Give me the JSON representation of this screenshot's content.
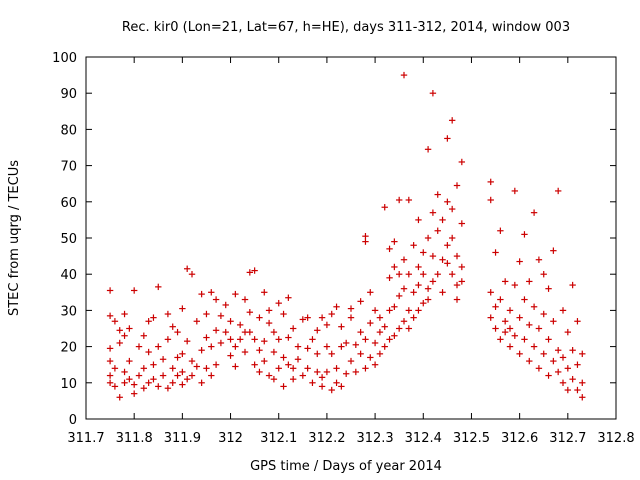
{
  "chart_data": {
    "type": "scatter",
    "title": "Rec. kir0 (Lon=21, Lat=67, h=HE), days 311-312, 2014, window 003",
    "xlabel": "GPS time / Days of year 2014",
    "ylabel": "STEC from uqrg / TECUs",
    "xlim": [
      311.7,
      312.8
    ],
    "ylim": [
      0,
      100
    ],
    "xticks": [
      311.7,
      311.8,
      311.9,
      312,
      312.1,
      312.2,
      312.3,
      312.4,
      312.5,
      312.6,
      312.7,
      312.8
    ],
    "xtick_labels": [
      "311.7",
      "311.8",
      "311.9",
      "312",
      "312.1",
      "312.2",
      "312.3",
      "312.4",
      "312.5",
      "312.6",
      "312.7",
      "312.8"
    ],
    "yticks": [
      0,
      10,
      20,
      30,
      40,
      50,
      60,
      70,
      80,
      90,
      100
    ],
    "ytick_labels": [
      "0",
      "10",
      "20",
      "30",
      "40",
      "50",
      "60",
      "70",
      "80",
      "90",
      "100"
    ],
    "marker": "+",
    "color": "#cc0000",
    "grid": false,
    "points": [
      [
        311.75,
        35.5
      ],
      [
        311.75,
        28.5
      ],
      [
        311.75,
        19.5
      ],
      [
        311.75,
        16
      ],
      [
        311.75,
        12
      ],
      [
        311.75,
        10
      ],
      [
        311.76,
        9
      ],
      [
        311.76,
        14
      ],
      [
        311.76,
        27
      ],
      [
        311.77,
        24.5
      ],
      [
        311.77,
        21
      ],
      [
        311.77,
        6
      ],
      [
        311.78,
        10
      ],
      [
        311.78,
        13
      ],
      [
        311.78,
        23
      ],
      [
        311.78,
        29
      ],
      [
        311.79,
        11
      ],
      [
        311.79,
        16
      ],
      [
        311.79,
        25
      ],
      [
        311.8,
        9.5
      ],
      [
        311.8,
        7
      ],
      [
        311.8,
        35.5
      ],
      [
        311.81,
        12
      ],
      [
        311.81,
        20
      ],
      [
        311.82,
        8.5
      ],
      [
        311.82,
        14
      ],
      [
        311.82,
        23
      ],
      [
        311.83,
        10
      ],
      [
        311.83,
        18.5
      ],
      [
        311.83,
        27
      ],
      [
        311.84,
        11
      ],
      [
        311.84,
        15
      ],
      [
        311.84,
        28
      ],
      [
        311.85,
        36.5
      ],
      [
        311.85,
        9
      ],
      [
        311.85,
        20
      ],
      [
        311.86,
        12
      ],
      [
        311.86,
        16.5
      ],
      [
        311.87,
        8.5
      ],
      [
        311.87,
        22
      ],
      [
        311.87,
        29
      ],
      [
        311.88,
        10
      ],
      [
        311.88,
        14
      ],
      [
        311.88,
        25.5
      ],
      [
        311.89,
        12
      ],
      [
        311.89,
        17
      ],
      [
        311.89,
        24
      ],
      [
        311.9,
        9.5
      ],
      [
        311.9,
        13
      ],
      [
        311.9,
        18
      ],
      [
        311.9,
        30.5
      ],
      [
        311.91,
        41.5
      ],
      [
        311.91,
        11
      ],
      [
        311.91,
        21.5
      ],
      [
        311.92,
        12
      ],
      [
        311.92,
        16
      ],
      [
        311.92,
        40
      ],
      [
        311.93,
        14.5
      ],
      [
        311.93,
        27
      ],
      [
        311.94,
        10
      ],
      [
        311.94,
        19
      ],
      [
        311.94,
        34.5
      ],
      [
        311.95,
        14
      ],
      [
        311.95,
        22.5
      ],
      [
        311.95,
        29
      ],
      [
        311.96,
        12
      ],
      [
        311.96,
        20
      ],
      [
        311.96,
        35
      ],
      [
        311.97,
        15
      ],
      [
        311.97,
        24.5
      ],
      [
        311.97,
        33
      ],
      [
        311.98,
        21
      ],
      [
        311.98,
        28.5
      ],
      [
        311.99,
        24
      ],
      [
        311.99,
        31.5
      ],
      [
        312,
        17.5
      ],
      [
        312,
        22
      ],
      [
        312,
        27
      ],
      [
        312.01,
        34.5
      ],
      [
        312.01,
        20
      ],
      [
        312.01,
        14.5
      ],
      [
        312.02,
        26
      ],
      [
        312.02,
        22
      ],
      [
        312.03,
        33
      ],
      [
        312.03,
        24
      ],
      [
        312.03,
        18.5
      ],
      [
        312.04,
        40.5
      ],
      [
        312.04,
        29.5
      ],
      [
        312.04,
        24
      ],
      [
        312.05,
        41
      ],
      [
        312.05,
        22
      ],
      [
        312.05,
        15
      ],
      [
        312.06,
        13
      ],
      [
        312.06,
        19
      ],
      [
        312.06,
        28
      ],
      [
        312.07,
        35
      ],
      [
        312.07,
        21.5
      ],
      [
        312.07,
        16
      ],
      [
        312.08,
        12
      ],
      [
        312.08,
        26.5
      ],
      [
        312.08,
        30
      ],
      [
        312.09,
        18.5
      ],
      [
        312.09,
        11
      ],
      [
        312.09,
        24
      ],
      [
        312.1,
        14
      ],
      [
        312.1,
        22
      ],
      [
        312.1,
        32
      ],
      [
        312.11,
        9
      ],
      [
        312.11,
        17
      ],
      [
        312.11,
        29
      ],
      [
        312.12,
        15
      ],
      [
        312.12,
        22.5
      ],
      [
        312.12,
        33.5
      ],
      [
        312.13,
        11
      ],
      [
        312.13,
        14
      ],
      [
        312.13,
        25
      ],
      [
        312.14,
        16.5
      ],
      [
        312.14,
        20
      ],
      [
        312.15,
        12
      ],
      [
        312.15,
        27.5
      ],
      [
        312.16,
        14
      ],
      [
        312.16,
        19.5
      ],
      [
        312.16,
        28
      ],
      [
        312.17,
        10
      ],
      [
        312.17,
        22
      ],
      [
        312.18,
        13
      ],
      [
        312.18,
        18
      ],
      [
        312.18,
        24.5
      ],
      [
        312.19,
        9
      ],
      [
        312.19,
        11.5
      ],
      [
        312.19,
        28
      ],
      [
        312.2,
        13
      ],
      [
        312.2,
        20
      ],
      [
        312.2,
        26
      ],
      [
        312.21,
        8
      ],
      [
        312.21,
        18
      ],
      [
        312.21,
        29
      ],
      [
        312.22,
        10
      ],
      [
        312.22,
        14
      ],
      [
        312.22,
        31
      ],
      [
        312.23,
        9
      ],
      [
        312.23,
        20
      ],
      [
        312.23,
        25.5
      ],
      [
        312.24,
        12.5
      ],
      [
        312.24,
        21
      ],
      [
        312.25,
        16
      ],
      [
        312.25,
        28
      ],
      [
        312.25,
        30.5
      ],
      [
        312.26,
        13
      ],
      [
        312.26,
        20.5
      ],
      [
        312.27,
        18
      ],
      [
        312.27,
        24
      ],
      [
        312.27,
        32.5
      ],
      [
        312.28,
        14
      ],
      [
        312.28,
        22
      ],
      [
        312.28,
        50.5
      ],
      [
        312.28,
        49
      ],
      [
        312.29,
        17
      ],
      [
        312.29,
        26.5
      ],
      [
        312.29,
        35
      ],
      [
        312.3,
        15
      ],
      [
        312.3,
        21
      ],
      [
        312.3,
        30
      ],
      [
        312.31,
        18
      ],
      [
        312.31,
        24
      ],
      [
        312.31,
        28
      ],
      [
        312.32,
        20
      ],
      [
        312.32,
        25.5
      ],
      [
        312.32,
        58.5
      ],
      [
        312.33,
        22
      ],
      [
        312.33,
        30
      ],
      [
        312.33,
        39
      ],
      [
        312.33,
        47
      ],
      [
        312.34,
        23
      ],
      [
        312.34,
        31
      ],
      [
        312.34,
        42
      ],
      [
        312.34,
        49
      ],
      [
        312.35,
        25
      ],
      [
        312.35,
        34
      ],
      [
        312.35,
        60.5
      ],
      [
        312.35,
        40
      ],
      [
        312.36,
        95
      ],
      [
        312.36,
        27
      ],
      [
        312.36,
        36
      ],
      [
        312.36,
        44
      ],
      [
        312.37,
        25
      ],
      [
        312.37,
        30
      ],
      [
        312.37,
        60.5
      ],
      [
        312.37,
        40
      ],
      [
        312.38,
        28
      ],
      [
        312.38,
        35
      ],
      [
        312.38,
        48
      ],
      [
        312.39,
        30
      ],
      [
        312.39,
        37
      ],
      [
        312.39,
        42
      ],
      [
        312.39,
        55
      ],
      [
        312.4,
        32
      ],
      [
        312.4,
        40
      ],
      [
        312.4,
        46
      ],
      [
        312.41,
        33
      ],
      [
        312.41,
        50
      ],
      [
        312.41,
        74.5
      ],
      [
        312.41,
        36
      ],
      [
        312.42,
        90
      ],
      [
        312.42,
        38
      ],
      [
        312.42,
        45
      ],
      [
        312.42,
        57
      ],
      [
        312.43,
        40
      ],
      [
        312.43,
        52
      ],
      [
        312.43,
        62
      ],
      [
        312.44,
        35
      ],
      [
        312.44,
        44
      ],
      [
        312.44,
        55
      ],
      [
        312.45,
        43
      ],
      [
        312.45,
        60
      ],
      [
        312.45,
        77.5
      ],
      [
        312.45,
        48
      ],
      [
        312.46,
        82.5
      ],
      [
        312.46,
        40
      ],
      [
        312.46,
        50
      ],
      [
        312.46,
        58
      ],
      [
        312.47,
        37
      ],
      [
        312.47,
        45
      ],
      [
        312.47,
        64.5
      ],
      [
        312.47,
        33
      ],
      [
        312.48,
        42
      ],
      [
        312.48,
        54
      ],
      [
        312.48,
        71
      ],
      [
        312.48,
        38
      ],
      [
        312.54,
        65.5
      ],
      [
        312.54,
        60.5
      ],
      [
        312.54,
        35
      ],
      [
        312.54,
        28
      ],
      [
        312.55,
        25
      ],
      [
        312.55,
        31
      ],
      [
        312.55,
        46
      ],
      [
        312.56,
        22
      ],
      [
        312.56,
        33
      ],
      [
        312.56,
        52
      ],
      [
        312.57,
        24
      ],
      [
        312.57,
        38
      ],
      [
        312.57,
        27
      ],
      [
        312.58,
        20
      ],
      [
        312.58,
        25
      ],
      [
        312.58,
        30
      ],
      [
        312.59,
        23
      ],
      [
        312.59,
        37
      ],
      [
        312.59,
        63
      ],
      [
        312.6,
        18
      ],
      [
        312.6,
        28
      ],
      [
        312.6,
        43.5
      ],
      [
        312.61,
        22
      ],
      [
        312.61,
        33
      ],
      [
        312.61,
        51
      ],
      [
        312.62,
        16
      ],
      [
        312.62,
        26
      ],
      [
        312.62,
        38
      ],
      [
        312.63,
        20
      ],
      [
        312.63,
        31
      ],
      [
        312.63,
        57
      ],
      [
        312.64,
        14
      ],
      [
        312.64,
        25
      ],
      [
        312.64,
        44
      ],
      [
        312.65,
        18
      ],
      [
        312.65,
        29
      ],
      [
        312.65,
        40
      ],
      [
        312.66,
        12
      ],
      [
        312.66,
        22
      ],
      [
        312.66,
        36
      ],
      [
        312.67,
        16
      ],
      [
        312.67,
        27
      ],
      [
        312.67,
        46.5
      ],
      [
        312.68,
        13
      ],
      [
        312.68,
        19
      ],
      [
        312.68,
        63
      ],
      [
        312.69,
        10
      ],
      [
        312.69,
        17
      ],
      [
        312.69,
        30
      ],
      [
        312.7,
        8
      ],
      [
        312.7,
        14
      ],
      [
        312.7,
        24
      ],
      [
        312.71,
        37
      ],
      [
        312.71,
        11
      ],
      [
        312.71,
        19
      ],
      [
        312.72,
        8
      ],
      [
        312.72,
        15
      ],
      [
        312.72,
        27
      ],
      [
        312.73,
        6
      ],
      [
        312.73,
        10
      ],
      [
        312.73,
        18
      ]
    ]
  }
}
